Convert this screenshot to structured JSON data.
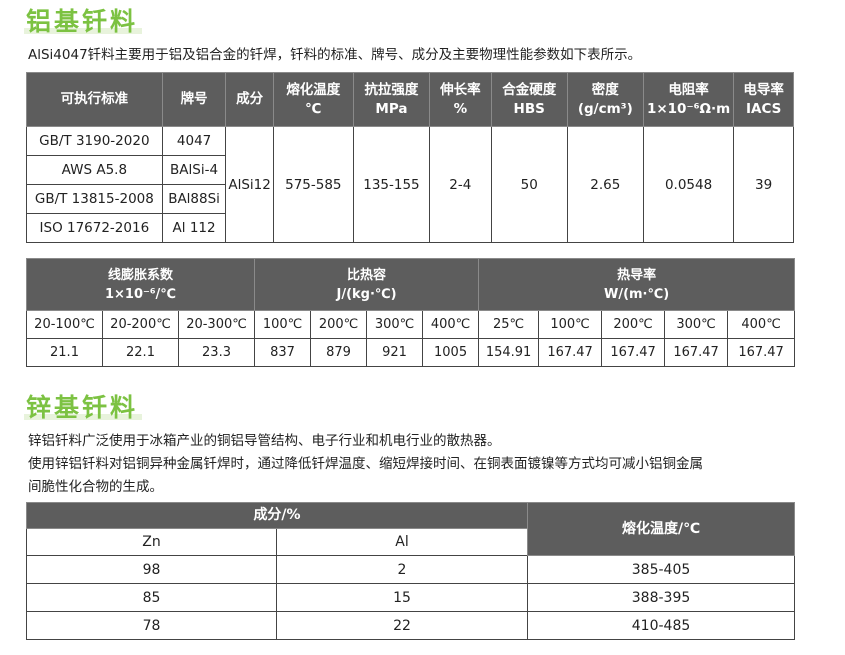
{
  "section1": {
    "title": "铝基钎料",
    "intro": "AlSi4047钎料主要用于铝及铝合金的钎焊，钎料的标准、牌号、成分及主要物理性能参数如下表所示。",
    "table1": {
      "headers": [
        [
          "可执行标准"
        ],
        [
          "牌号"
        ],
        [
          "成分"
        ],
        [
          "熔化温度",
          "℃"
        ],
        [
          "抗拉强度",
          "MPa"
        ],
        [
          "伸长率",
          "%"
        ],
        [
          "合金硬度",
          "HBS"
        ],
        [
          "密度",
          "(g/cm³)"
        ],
        [
          "电阻率",
          "1×10⁻⁶Ω·m"
        ],
        [
          "电导率",
          "IACS"
        ]
      ],
      "rows": [
        {
          "standard": "GB/T 3190-2020",
          "grade": "4047"
        },
        {
          "standard": "AWS A5.8",
          "grade": "BAlSi-4"
        },
        {
          "standard": "GB/T 13815-2008",
          "grade": "BAl88Si"
        },
        {
          "standard": "ISO 17672-2016",
          "grade": "Al 112"
        }
      ],
      "shared": {
        "composition": "AlSi12",
        "melting": "575-585",
        "tensile": "135-155",
        "elongation": "2-4",
        "hardness": "50",
        "density": "2.65",
        "resistivity": "0.0548",
        "conductivity": "39"
      }
    },
    "table2": {
      "groups": [
        {
          "title": "线膨胀系数",
          "unit": "1×10⁻⁶/℃"
        },
        {
          "title": "比热容",
          "unit": "J/(kg·℃)"
        },
        {
          "title": "热导率",
          "unit": "W/(m·℃)"
        }
      ],
      "temps": [
        "20-100℃",
        "20-200℃",
        "20-300℃",
        "100℃",
        "200℃",
        "300℃",
        "400℃",
        "25℃",
        "100℃",
        "200℃",
        "300℃",
        "400℃"
      ],
      "values": [
        "21.1",
        "22.1",
        "23.3",
        "837",
        "879",
        "921",
        "1005",
        "154.91",
        "167.47",
        "167.47",
        "167.47",
        "167.47"
      ]
    }
  },
  "section2": {
    "title": "锌基钎料",
    "para1": "锌铝钎料广泛使用于冰箱产业的铜铝导管结构、电子行业和机电行业的散热器。",
    "para2a": "使用锌铝钎料对铝铜异种金属钎焊时，通过降低钎焊温度、缩短焊接时间、在铜表面镀镍等方式均可减小铝铜金属",
    "para2b": "间脆性化合物的生成。",
    "table3": {
      "composition_header": "成分/%",
      "melting_header": "熔化温度/℃",
      "col_zn": "Zn",
      "col_al": "Al",
      "rows": [
        {
          "zn": "98",
          "al": "2",
          "melting": "385-405"
        },
        {
          "zn": "85",
          "al": "15",
          "melting": "388-395"
        },
        {
          "zn": "78",
          "al": "22",
          "melting": "410-485"
        }
      ]
    }
  }
}
